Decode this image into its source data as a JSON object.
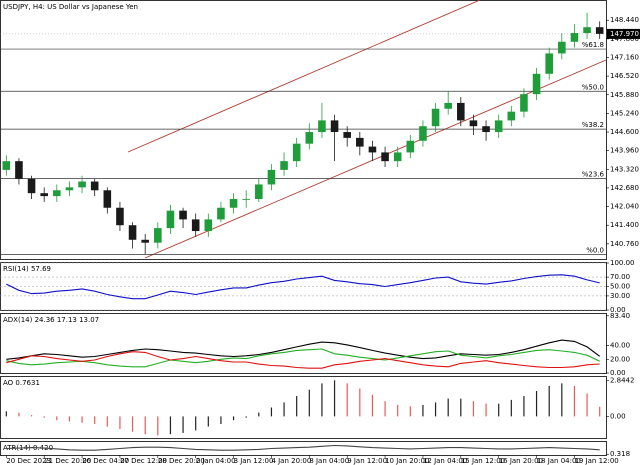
{
  "chart_data": [
    {
      "type": "candlestick",
      "title": "USDJPY, H4: US Dollar vs Japanese Yen",
      "categories": [
        "20 Dec 2023",
        null,
        null,
        "21 Dec 20:00",
        null,
        null,
        "26 Dec 04:00",
        null,
        null,
        "27 Dec 12:00",
        null,
        null,
        "28 Dec 20:00",
        null,
        null,
        "2 Jan 04:00",
        null,
        null,
        "3 Jan 12:00",
        null,
        null,
        "4 Jan 20:00",
        null,
        null,
        "8 Jan 04:00",
        null,
        null,
        "9 Jan 12:00",
        null,
        null,
        "10 Jan 20:00",
        null,
        null,
        "12 Jan 04:00",
        null,
        null,
        "15 Jan 12:00",
        null,
        null,
        "16 Jan 20:00",
        null,
        null,
        "18 Jan 04:00",
        null,
        null,
        "19 Jan 12:00",
        null,
        null
      ],
      "open": [
        143.3,
        143.6,
        143.0,
        142.5,
        142.4,
        142.6,
        142.7,
        142.9,
        142.6,
        142.0,
        141.4,
        140.9,
        140.8,
        141.3,
        141.9,
        141.6,
        141.2,
        141.6,
        142.0,
        142.3,
        142.3,
        142.8,
        143.3,
        143.6,
        144.2,
        144.6,
        145.0,
        144.6,
        144.4,
        144.1,
        143.9,
        143.6,
        143.9,
        144.3,
        144.8,
        145.4,
        145.6,
        145.0,
        144.8,
        144.6,
        145.0,
        145.3,
        145.9,
        146.6,
        147.3,
        147.7,
        148.0,
        148.2
      ],
      "high": [
        143.8,
        143.7,
        143.1,
        142.7,
        142.8,
        142.9,
        143.1,
        143.0,
        142.7,
        142.2,
        141.5,
        141.1,
        141.5,
        142.1,
        142.0,
        141.8,
        141.8,
        142.2,
        142.5,
        142.6,
        143.0,
        143.5,
        143.9,
        144.4,
        144.9,
        145.6,
        145.2,
        144.8,
        144.6,
        144.3,
        144.1,
        144.1,
        144.5,
        145.0,
        145.6,
        146.0,
        145.8,
        145.2,
        145.0,
        145.2,
        145.5,
        146.1,
        146.8,
        147.5,
        148.0,
        148.3,
        148.7,
        148.4
      ],
      "low": [
        143.1,
        142.8,
        142.3,
        142.2,
        142.2,
        142.4,
        142.5,
        142.4,
        141.8,
        141.2,
        140.6,
        140.4,
        140.6,
        141.1,
        141.3,
        141.0,
        141.0,
        141.5,
        141.8,
        142.0,
        142.2,
        142.6,
        143.1,
        143.4,
        144.0,
        144.4,
        143.6,
        144.1,
        143.8,
        143.6,
        143.4,
        143.4,
        143.7,
        144.1,
        144.6,
        145.2,
        144.8,
        144.5,
        144.3,
        144.4,
        144.8,
        145.1,
        145.7,
        146.4,
        147.1,
        147.5,
        147.8,
        147.8
      ],
      "close": [
        143.6,
        143.0,
        142.5,
        142.4,
        142.6,
        142.7,
        142.9,
        142.6,
        142.0,
        141.4,
        140.9,
        140.8,
        141.3,
        141.9,
        141.6,
        141.2,
        141.6,
        142.0,
        142.3,
        142.3,
        142.8,
        143.3,
        143.6,
        144.2,
        144.6,
        145.0,
        144.6,
        144.4,
        144.1,
        143.9,
        143.6,
        143.9,
        144.3,
        144.8,
        145.4,
        145.6,
        145.0,
        144.8,
        144.6,
        145.0,
        145.3,
        145.9,
        146.6,
        147.3,
        147.7,
        148.0,
        148.2,
        147.97
      ],
      "up_color": "#1f9d3a",
      "down_color": "#1a1a1a",
      "ylim": [
        140.24,
        149.1
      ],
      "yticks": [
        {
          "value": 140.76,
          "label": "140.760"
        },
        {
          "value": 141.4,
          "label": "141.400"
        },
        {
          "value": 142.04,
          "label": "142.040"
        },
        {
          "value": 142.68,
          "label": "142.680"
        },
        {
          "value": 143.32,
          "label": "143.320"
        },
        {
          "value": 143.96,
          "label": "143.960"
        },
        {
          "value": 144.6,
          "label": "144.600"
        },
        {
          "value": 145.24,
          "label": "145.240"
        },
        {
          "value": 145.88,
          "label": "145.880"
        },
        {
          "value": 146.52,
          "label": "146.520"
        },
        {
          "value": 147.16,
          "label": "147.160"
        },
        {
          "value": 147.8,
          "label": "147.800"
        },
        {
          "value": 148.44,
          "label": "148.440"
        }
      ],
      "last_price": {
        "value": 147.97,
        "label": "147.970"
      },
      "levels": [
        {
          "value": 147.45,
          "label": "%61.8"
        },
        {
          "value": 146.0,
          "label": "%50.0"
        },
        {
          "value": 144.7,
          "label": "%38.2"
        },
        {
          "value": 143.0,
          "label": "%23.6"
        },
        {
          "value": 140.4,
          "label": "%0.0"
        }
      ]
    },
    {
      "type": "line",
      "title": "RSI(14) 57.69",
      "grid": true,
      "series": [
        {
          "name": "RSI",
          "color": "#1010c8",
          "values": [
            55,
            42,
            35,
            36,
            40,
            42,
            45,
            40,
            33,
            28,
            24,
            24,
            32,
            40,
            37,
            33,
            38,
            43,
            47,
            47,
            53,
            58,
            61,
            66,
            69,
            72,
            63,
            60,
            56,
            54,
            50,
            54,
            58,
            63,
            68,
            70,
            60,
            57,
            55,
            59,
            62,
            67,
            71,
            74,
            75,
            72,
            64,
            57.69
          ]
        }
      ],
      "ylim": [
        0,
        100
      ],
      "yticks": [
        {
          "value": 0,
          "label": "0.00"
        },
        {
          "value": 30,
          "label": "30.00"
        },
        {
          "value": 50,
          "label": "50.00"
        },
        {
          "value": 70,
          "label": "70.00"
        },
        {
          "value": 100,
          "label": "100.00"
        }
      ]
    },
    {
      "type": "line",
      "title": "ADX(14) 24.36 17.13 13.07",
      "series": [
        {
          "name": "ADX",
          "color": "#000000",
          "values": [
            20,
            22,
            25,
            28,
            27,
            25,
            23,
            24,
            27,
            30,
            33,
            35,
            34,
            32,
            30,
            29,
            27,
            25,
            24,
            25,
            27,
            30,
            34,
            38,
            42,
            45,
            44,
            41,
            37,
            33,
            29,
            26,
            23,
            21,
            22,
            25,
            28,
            27,
            26,
            27,
            30,
            34,
            39,
            44,
            48,
            46,
            38,
            24.36
          ]
        },
        {
          "name": "+DI",
          "color": "#22b022",
          "values": [
            18,
            14,
            12,
            13,
            15,
            16,
            17,
            15,
            12,
            10,
            9,
            9,
            14,
            19,
            17,
            15,
            17,
            20,
            22,
            21,
            25,
            28,
            30,
            33,
            34,
            35,
            28,
            26,
            23,
            21,
            19,
            22,
            25,
            28,
            31,
            32,
            26,
            24,
            22,
            25,
            27,
            30,
            33,
            34,
            32,
            30,
            26,
            17.13
          ]
        },
        {
          "name": "-DI",
          "color": "#e01010",
          "values": [
            15,
            20,
            25,
            24,
            21,
            19,
            17,
            19,
            24,
            28,
            31,
            30,
            24,
            19,
            21,
            24,
            21,
            18,
            16,
            16,
            13,
            11,
            10,
            8,
            7,
            7,
            12,
            14,
            17,
            19,
            21,
            18,
            15,
            12,
            10,
            9,
            14,
            16,
            18,
            15,
            13,
            11,
            9,
            8,
            8,
            9,
            12,
            13.07
          ]
        }
      ],
      "ylim": [
        0,
        86
      ],
      "yticks": [
        {
          "value": 0,
          "label": "0.00"
        },
        {
          "value": 20,
          "label": "20.00"
        },
        {
          "value": 40,
          "label": "40.00"
        },
        {
          "value": 83.4,
          "label": "83.40"
        }
      ]
    },
    {
      "type": "bar",
      "title": "AO 0.7631",
      "up_color": "#222222",
      "down_color": "#e85a5a",
      "values": [
        0.4,
        0.3,
        0.1,
        -0.1,
        -0.3,
        -0.4,
        -0.5,
        -0.6,
        -0.8,
        -1.0,
        -1.2,
        -1.4,
        -1.5,
        -1.4,
        -1.3,
        -1.1,
        -0.8,
        -0.6,
        -0.3,
        -0.1,
        0.3,
        0.7,
        1.1,
        1.6,
        2.1,
        2.6,
        2.84,
        2.6,
        2.2,
        1.7,
        1.2,
        0.9,
        0.8,
        0.9,
        1.1,
        1.4,
        1.4,
        1.2,
        1.0,
        1.0,
        1.3,
        1.6,
        2.0,
        2.4,
        2.6,
        2.4,
        1.8,
        0.7631
      ],
      "ylim": [
        -1.7,
        3.1
      ],
      "yticks": [
        {
          "value": 0,
          "label": "0.00"
        },
        2.8442
      ]
    },
    {
      "type": "line",
      "title": "ATR(14) 0.420",
      "series": [
        {
          "name": "ATR",
          "color": "#444444",
          "values": [
            0.45,
            0.46,
            0.47,
            0.46,
            0.44,
            0.42,
            0.41,
            0.41,
            0.43,
            0.45,
            0.47,
            0.48,
            0.48,
            0.47,
            0.45,
            0.43,
            0.42,
            0.41,
            0.41,
            0.42,
            0.43,
            0.45,
            0.46,
            0.47,
            0.48,
            0.5,
            0.52,
            0.51,
            0.49,
            0.47,
            0.46,
            0.45,
            0.44,
            0.45,
            0.46,
            0.47,
            0.47,
            0.46,
            0.45,
            0.44,
            0.44,
            0.45,
            0.46,
            0.47,
            0.46,
            0.45,
            0.44,
            0.42
          ]
        }
      ],
      "ylim": [
        0.3,
        0.6
      ],
      "yticks": [
        0.318
      ]
    }
  ]
}
